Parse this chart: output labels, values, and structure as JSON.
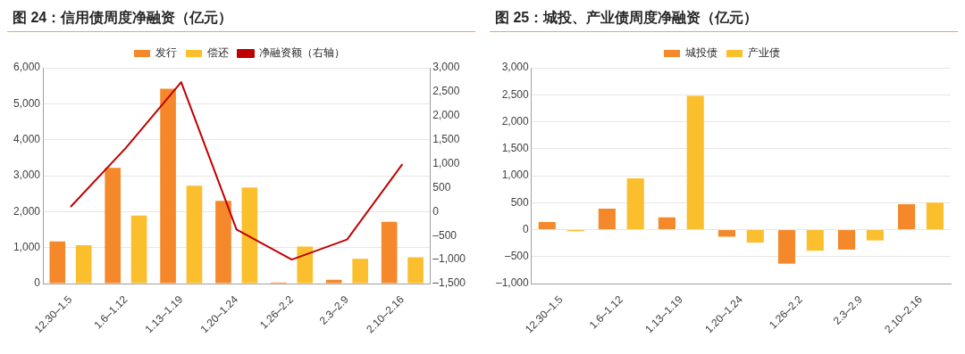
{
  "chart_data": [
    {
      "type": "bar",
      "title": "图 24：信用债周度净融资（亿元）",
      "categories": [
        "12.30–1.5",
        "1.6–1.12",
        "1.13–1.19",
        "1.20–1.24",
        "1.26–2.2",
        "2.3–2.9",
        "2.10–2.16"
      ],
      "series": [
        {
          "name": "发行",
          "color": "#f5882a",
          "values": [
            1170,
            3220,
            5420,
            2300,
            30,
            110,
            1720
          ]
        },
        {
          "name": "偿还",
          "color": "#fbbf2d",
          "values": [
            1070,
            1890,
            2720,
            2670,
            1030,
            690,
            730
          ]
        },
        {
          "name": "净融资额（右轴）",
          "type": "line",
          "axis": "y2",
          "color": "#c00000",
          "values": [
            100,
            1330,
            2700,
            -370,
            -1000,
            -580,
            990
          ]
        }
      ],
      "ylim": [
        0,
        6000
      ],
      "yticks": [
        {
          "value": 0,
          "label": "0"
        },
        {
          "value": 1000,
          "label": "1,000"
        },
        {
          "value": 2000,
          "label": "2,000"
        },
        {
          "value": 3000,
          "label": "3,000"
        },
        {
          "value": 4000,
          "label": "4,000"
        },
        {
          "value": 5000,
          "label": "5,000"
        },
        {
          "value": 6000,
          "label": "6,000"
        }
      ],
      "y2lim": [
        -1500,
        3000
      ],
      "y2ticks": [
        {
          "value": -1500,
          "label": "–1,500"
        },
        {
          "value": -1000,
          "label": "–1,000"
        },
        {
          "value": -500,
          "label": "–500"
        },
        {
          "value": 0,
          "label": "0"
        },
        500,
        {
          "value": 1000,
          "label": "1,000"
        },
        {
          "value": 1500,
          "label": "1,500"
        },
        {
          "value": 2000,
          "label": "2,000"
        },
        {
          "value": 2500,
          "label": "2,500"
        },
        {
          "value": 3000,
          "label": "3,000"
        }
      ],
      "grid": "y",
      "legend": "top",
      "marker": "none"
    },
    {
      "type": "bar",
      "title": "图 25：城投、产业债周度净融资（亿元）",
      "categories": [
        "12.30–1.5",
        "1.6–1.12",
        "1.13–1.19",
        "1.20–1.24",
        "1.26–2.2",
        "2.3–2.9",
        "2.10–2.16"
      ],
      "series": [
        {
          "name": "城投债",
          "color": "#f5882a",
          "values": [
            140,
            390,
            230,
            -130,
            -630,
            -370,
            470
          ]
        },
        {
          "name": "产业债",
          "color": "#fbbf2d",
          "values": [
            -30,
            950,
            2480,
            -240,
            -390,
            -200,
            500
          ]
        }
      ],
      "ylim": [
        -1000,
        3000
      ],
      "yticks": [
        {
          "value": -1000,
          "label": "–1,000"
        },
        {
          "value": -500,
          "label": "–500"
        },
        {
          "value": 0,
          "label": "0"
        },
        500,
        {
          "value": 1000,
          "label": "1,000"
        },
        {
          "value": 1500,
          "label": "1,500"
        },
        {
          "value": 2000,
          "label": "2,000"
        },
        {
          "value": 2500,
          "label": "2,500"
        },
        {
          "value": 3000,
          "label": "3,000"
        }
      ],
      "grid": "y",
      "legend": "top"
    }
  ]
}
